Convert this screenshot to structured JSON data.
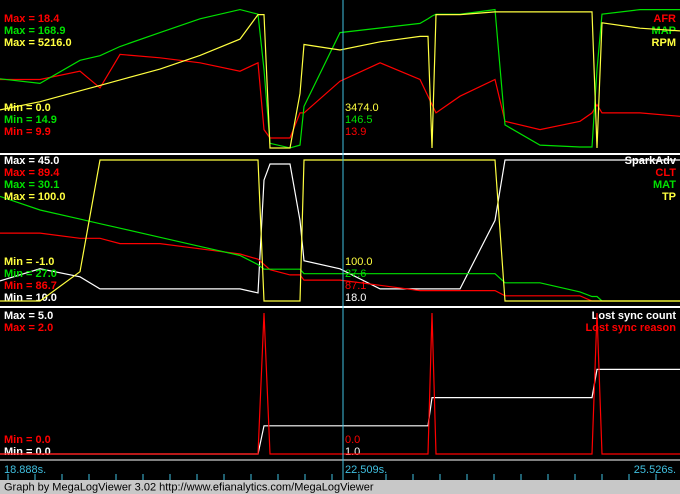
{
  "chart_data": [
    {
      "type": "line",
      "x": [
        18.888,
        19.278,
        19.669,
        19.864,
        20.059,
        20.45,
        20.84,
        21.231,
        21.407,
        21.465,
        21.524,
        21.719,
        21.817,
        21.856,
        22.207,
        22.598,
        22.988,
        23.066,
        23.105,
        23.144,
        23.378,
        23.72,
        23.818,
        24.159,
        24.55,
        24.667,
        24.716,
        24.765,
        25.136,
        25.526
      ],
      "xlim": [
        18.888,
        25.526
      ],
      "series": [
        {
          "name": "AFR",
          "color": "#ff0000",
          "ylim": [
            9.9,
            18.4
          ],
          "max_label": "Max = 18.4",
          "min_label": "Min = 9.9",
          "cursor_label": "13.9",
          "values": [
            14,
            14,
            14.5,
            13.5,
            15.5,
            15.3,
            15,
            14.5,
            15,
            11,
            10.5,
            10.5,
            12,
            12,
            13.9,
            15,
            14,
            13,
            12.5,
            12,
            13,
            14,
            11.5,
            11,
            11.5,
            12,
            12.5,
            12,
            12,
            11.8
          ]
        },
        {
          "name": "MAP",
          "color": "#00e000",
          "ylim": [
            14.9,
            168.9
          ],
          "max_label": "Max = 168.9",
          "min_label": "Min = 14.9",
          "cursor_label": "146.5",
          "values": [
            90,
            85,
            110,
            115,
            125,
            140,
            155,
            165,
            160,
            100,
            20,
            15,
            18,
            60,
            140,
            145,
            150,
            155,
            158,
            160,
            160,
            165,
            40,
            18,
            16,
            16,
            100,
            160,
            165,
            165
          ]
        },
        {
          "name": "RPM",
          "color": "#ffff40",
          "ylim": [
            0.0,
            5216.0
          ],
          "max_label": "Max = 5216.0",
          "min_label": "Min = 0.0",
          "cursor_label": "3474.0",
          "values": [
            1400,
            1700,
            2100,
            2300,
            2500,
            2900,
            3400,
            4000,
            4900,
            4900,
            0,
            0,
            2000,
            3800,
            3600,
            3900,
            4100,
            4100,
            0,
            4900,
            4900,
            5000,
            5000,
            5000,
            5000,
            5000,
            0,
            4600,
            4400,
            4300
          ]
        }
      ]
    },
    {
      "type": "line",
      "x": [
        18.888,
        19.278,
        19.669,
        19.864,
        20.059,
        20.45,
        20.84,
        21.231,
        21.407,
        21.465,
        21.524,
        21.719,
        21.817,
        21.856,
        22.207,
        22.598,
        22.988,
        23.066,
        23.105,
        23.144,
        23.378,
        23.72,
        23.818,
        24.159,
        24.55,
        24.667,
        24.716,
        24.765,
        25.136,
        25.526
      ],
      "xlim": [
        18.888,
        25.526
      ],
      "series": [
        {
          "name": "SparkAdv",
          "color": "#ffffff",
          "ylim": [
            10.0,
            45.0
          ],
          "max_label": "Max = 45.0",
          "min_label": "Min = 10.0",
          "cursor_label": "18.0",
          "values": [
            15,
            18,
            16,
            13,
            13,
            13,
            13,
            13,
            12,
            40,
            44,
            44,
            30,
            20,
            18,
            13,
            13,
            13,
            13,
            13,
            13,
            30,
            45,
            45,
            45,
            45,
            45,
            45,
            45,
            45
          ]
        },
        {
          "name": "CLT",
          "color": "#ff0000",
          "ylim": [
            86.7,
            89.4
          ],
          "max_label": "Max = 89.4",
          "min_label": "Min = 86.7",
          "cursor_label": "87.1",
          "values": [
            88,
            88,
            87.9,
            87.9,
            87.8,
            87.8,
            87.7,
            87.6,
            87.5,
            87.4,
            87.3,
            87.2,
            87.2,
            87.1,
            87.1,
            87.0,
            86.9,
            86.9,
            86.9,
            86.9,
            86.9,
            86.9,
            86.8,
            86.8,
            86.8,
            86.7,
            86.7,
            86.7,
            86.7,
            86.7
          ]
        },
        {
          "name": "MAT",
          "color": "#00e000",
          "ylim": [
            27.0,
            30.1
          ],
          "max_label": "Max = 30.1",
          "min_label": "Min = 27.0",
          "cursor_label": "27.6",
          "values": [
            29.3,
            29.0,
            28.8,
            28.7,
            28.6,
            28.4,
            28.2,
            28.0,
            27.8,
            27.7,
            27.7,
            27.7,
            27.7,
            27.6,
            27.6,
            27.6,
            27.6,
            27.6,
            27.6,
            27.6,
            27.6,
            27.6,
            27.4,
            27.4,
            27.2,
            27.1,
            27.1,
            27.0,
            27.0,
            27.0
          ]
        },
        {
          "name": "TP",
          "color": "#ffff40",
          "ylim": [
            -1.0,
            100.0
          ],
          "max_label": "Max = 100.0",
          "min_label": "Min = -1.0",
          "cursor_label": "100.0",
          "values": [
            -1,
            -1,
            20,
            100,
            100,
            100,
            100,
            100,
            100,
            -1,
            -1,
            -1,
            -1,
            100,
            100,
            100,
            100,
            100,
            100,
            100,
            100,
            100,
            -1,
            -1,
            -1,
            -1,
            -1,
            -1,
            -1,
            -1
          ]
        }
      ]
    },
    {
      "type": "line",
      "x": [
        18.888,
        19.278,
        19.669,
        19.864,
        20.059,
        20.45,
        20.84,
        21.231,
        21.407,
        21.465,
        21.524,
        21.719,
        21.817,
        21.856,
        22.207,
        22.598,
        22.988,
        23.066,
        23.105,
        23.144,
        23.378,
        23.72,
        23.818,
        24.159,
        24.55,
        24.667,
        24.716,
        24.765,
        25.136,
        25.526
      ],
      "xlim": [
        18.888,
        25.526
      ],
      "series": [
        {
          "name": "Lost sync count",
          "color": "#ffffff",
          "ylim": [
            0.0,
            5.0
          ],
          "max_label": "Max = 5.0",
          "min_label": "Min = 0.0",
          "cursor_label": "1.0",
          "values": [
            0,
            0,
            0,
            0,
            0,
            0,
            0,
            0,
            0,
            1,
            1,
            1,
            1,
            1,
            1,
            1,
            1,
            1,
            2,
            2,
            2,
            2,
            2,
            2,
            2,
            2,
            3,
            3,
            3,
            3
          ]
        },
        {
          "name": "Lost sync reason",
          "color": "#ff0000",
          "ylim": [
            0.0,
            2.0
          ],
          "max_label": "Max = 2.0",
          "min_label": "Min = 0.0",
          "cursor_label": "0.0",
          "values": [
            0,
            0,
            0,
            0,
            0,
            0,
            0,
            0,
            0,
            2,
            0,
            0,
            0,
            0,
            0,
            0,
            0,
            0,
            2,
            0,
            0,
            0,
            0,
            0,
            0,
            0,
            2,
            0,
            0,
            0
          ]
        }
      ]
    }
  ],
  "time_labels": [
    "18.888s.",
    "22.509s.",
    "25.526s."
  ],
  "footer": "Graph by MegaLogViewer 3.02 http://www.efianalytics.com/MegaLogViewer"
}
